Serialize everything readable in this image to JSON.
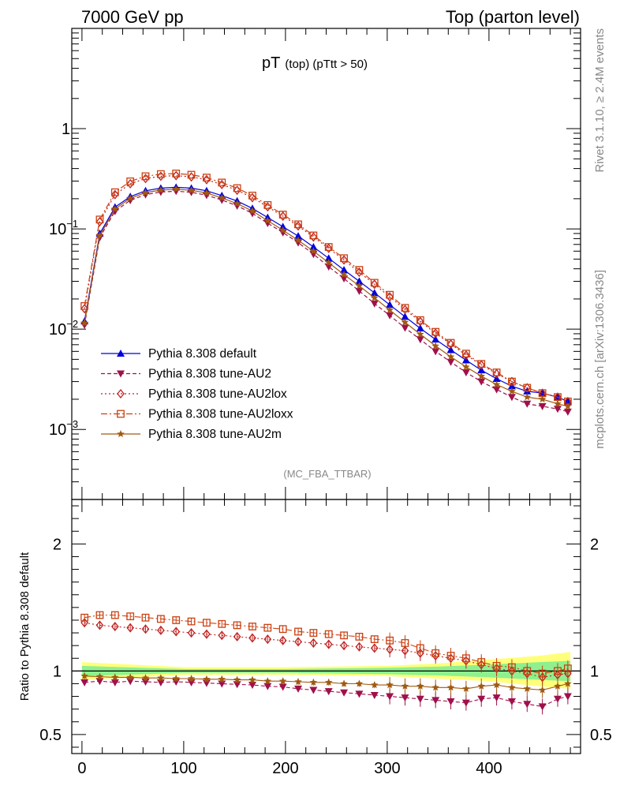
{
  "header": {
    "left": "7000 GeV pp",
    "right": "Top (parton level)"
  },
  "side_labels": {
    "rivet": "Rivet 3.1.10, ≥ 2.4M events",
    "mcplots": "mcplots.cern.ch [arXiv:1306.3436]"
  },
  "chart_data": [
    {
      "type": "line",
      "panel": "main",
      "title_main": "pT",
      "title_sub": "(top)  (pTtt > 50)",
      "watermark": "(MC_FBA_TTBAR)",
      "yscale": "log",
      "xlim": [
        -10,
        490
      ],
      "ylim": [
        0.0002,
        10
      ],
      "x_ticks": [
        0,
        100,
        200,
        300,
        400
      ],
      "y_ticks": [
        {
          "value": 1,
          "label": "1",
          "sup": ""
        },
        {
          "value": 0.1,
          "label": "10",
          "sup": "−1"
        },
        {
          "value": 0.01,
          "label": "10",
          "sup": "−2"
        },
        {
          "value": 0.001,
          "label": "10",
          "sup": "−3"
        }
      ],
      "x": [
        2.5,
        17.5,
        32.5,
        47.5,
        62.5,
        77.5,
        92.5,
        107.5,
        122.5,
        137.5,
        152.5,
        167.5,
        182.5,
        197.5,
        212.5,
        227.5,
        242.5,
        257.5,
        272.5,
        287.5,
        302.5,
        317.5,
        332.5,
        347.5,
        362.5,
        377.5,
        392.5,
        407.5,
        422.5,
        437.5,
        452.5,
        467.5,
        477.5
      ],
      "legend_position": "lower-left",
      "series": [
        {
          "name": "Pythia 8.308 default",
          "color": "#0000dd",
          "marker": "triangle-up",
          "dash": "",
          "values": [
            0.012,
            0.09,
            0.165,
            0.21,
            0.24,
            0.255,
            0.26,
            0.255,
            0.24,
            0.215,
            0.19,
            0.16,
            0.13,
            0.105,
            0.085,
            0.066,
            0.051,
            0.039,
            0.03,
            0.023,
            0.0175,
            0.0133,
            0.0102,
            0.0079,
            0.0062,
            0.0049,
            0.0039,
            0.0032,
            0.0027,
            0.0024,
            0.0023,
            0.0021,
            0.0019
          ]
        },
        {
          "name": "Pythia 8.308 tune-AU2",
          "color": "#a0104a",
          "marker": "triangle-down",
          "dash": "5,3",
          "values": [
            0.011,
            0.082,
            0.15,
            0.193,
            0.22,
            0.233,
            0.238,
            0.232,
            0.217,
            0.194,
            0.17,
            0.143,
            0.114,
            0.092,
            0.073,
            0.056,
            0.042,
            0.032,
            0.024,
            0.018,
            0.0137,
            0.0103,
            0.0079,
            0.006,
            0.0047,
            0.0037,
            0.003,
            0.0025,
            0.0021,
            0.0018,
            0.0017,
            0.0016,
            0.0015
          ]
        },
        {
          "name": "Pythia 8.308 tune-AU2lox",
          "color": "#c02020",
          "marker": "diamond-open",
          "dash": "2,3",
          "values": [
            0.016,
            0.118,
            0.22,
            0.282,
            0.318,
            0.335,
            0.34,
            0.33,
            0.31,
            0.277,
            0.243,
            0.205,
            0.166,
            0.134,
            0.107,
            0.083,
            0.064,
            0.049,
            0.037,
            0.028,
            0.021,
            0.0157,
            0.0119,
            0.0091,
            0.0071,
            0.0055,
            0.0044,
            0.0036,
            0.003,
            0.0026,
            0.0023,
            0.0021,
            0.0019
          ]
        },
        {
          "name": "Pythia 8.308 tune-AU2loxx",
          "color": "#cc4010",
          "marker": "square-open",
          "dash": "8,3,2,3",
          "values": [
            0.017,
            0.124,
            0.232,
            0.298,
            0.335,
            0.352,
            0.357,
            0.347,
            0.325,
            0.29,
            0.255,
            0.215,
            0.173,
            0.139,
            0.111,
            0.086,
            0.066,
            0.051,
            0.039,
            0.029,
            0.022,
            0.0163,
            0.0123,
            0.0094,
            0.0073,
            0.0057,
            0.0045,
            0.0037,
            0.003,
            0.0026,
            0.0023,
            0.0021,
            0.0019
          ]
        },
        {
          "name": "Pythia 8.308 tune-AU2m",
          "color": "#a05a10",
          "marker": "star",
          "dash": "",
          "values": [
            0.0115,
            0.086,
            0.158,
            0.202,
            0.23,
            0.244,
            0.249,
            0.243,
            0.228,
            0.204,
            0.179,
            0.151,
            0.121,
            0.097,
            0.077,
            0.06,
            0.046,
            0.035,
            0.027,
            0.0205,
            0.0155,
            0.0117,
            0.0089,
            0.0068,
            0.0053,
            0.0042,
            0.0034,
            0.0028,
            0.0024,
            0.0021,
            0.002,
            0.0018,
            0.0017
          ]
        }
      ]
    },
    {
      "type": "line",
      "panel": "ratio",
      "ylabel": "Ratio to Pythia 8.308 default",
      "xlim": [
        -10,
        490
      ],
      "ylim": [
        0.35,
        2.35
      ],
      "x_ticks": [
        0,
        100,
        200,
        300,
        400
      ],
      "y_ticks": [
        0.5,
        1,
        2
      ],
      "reference_line": 1,
      "band_x": [
        0,
        100,
        200,
        300,
        350,
        400,
        450,
        480
      ],
      "band_yellow_lo": [
        0.93,
        0.97,
        0.97,
        0.96,
        0.94,
        0.92,
        0.88,
        0.86
      ],
      "band_yellow_hi": [
        1.07,
        1.03,
        1.03,
        1.04,
        1.06,
        1.09,
        1.12,
        1.15
      ],
      "band_green_lo": [
        0.96,
        0.985,
        0.985,
        0.975,
        0.965,
        0.95,
        0.93,
        0.92
      ],
      "band_green_hi": [
        1.04,
        1.015,
        1.015,
        1.025,
        1.035,
        1.05,
        1.07,
        1.08
      ],
      "x": [
        2.5,
        17.5,
        32.5,
        47.5,
        62.5,
        77.5,
        92.5,
        107.5,
        122.5,
        137.5,
        152.5,
        167.5,
        182.5,
        197.5,
        212.5,
        227.5,
        242.5,
        257.5,
        272.5,
        287.5,
        302.5,
        317.5,
        332.5,
        347.5,
        362.5,
        377.5,
        392.5,
        407.5,
        422.5,
        437.5,
        452.5,
        467.5,
        477.5
      ],
      "series": [
        {
          "name": "Pythia 8.308 tune-AU2",
          "color": "#a0104a",
          "values": [
            0.91,
            0.92,
            0.91,
            0.92,
            0.915,
            0.91,
            0.915,
            0.91,
            0.905,
            0.9,
            0.895,
            0.89,
            0.88,
            0.875,
            0.86,
            0.85,
            0.84,
            0.83,
            0.82,
            0.81,
            0.8,
            0.79,
            0.78,
            0.77,
            0.76,
            0.75,
            0.78,
            0.79,
            0.76,
            0.74,
            0.72,
            0.78,
            0.8
          ]
        },
        {
          "name": "Pythia 8.308 tune-AU2lox",
          "color": "#c02020",
          "values": [
            1.38,
            1.36,
            1.35,
            1.34,
            1.33,
            1.32,
            1.31,
            1.3,
            1.29,
            1.28,
            1.27,
            1.26,
            1.25,
            1.24,
            1.23,
            1.22,
            1.21,
            1.2,
            1.19,
            1.18,
            1.17,
            1.16,
            1.14,
            1.12,
            1.1,
            1.08,
            1.05,
            1.02,
            1.0,
            0.98,
            0.95,
            0.97,
            0.98
          ]
        },
        {
          "name": "Pythia 8.308 tune-AU2loxx",
          "color": "#cc4010",
          "values": [
            1.42,
            1.44,
            1.44,
            1.43,
            1.42,
            1.41,
            1.4,
            1.39,
            1.38,
            1.37,
            1.36,
            1.35,
            1.34,
            1.33,
            1.31,
            1.3,
            1.29,
            1.28,
            1.27,
            1.25,
            1.24,
            1.22,
            1.18,
            1.14,
            1.12,
            1.1,
            1.07,
            1.04,
            1.03,
            1.0,
            0.98,
            1.0,
            1.02
          ]
        },
        {
          "name": "Pythia 8.308 tune-AU2m",
          "color": "#a05a10",
          "values": [
            0.96,
            0.955,
            0.95,
            0.95,
            0.945,
            0.945,
            0.94,
            0.94,
            0.935,
            0.935,
            0.93,
            0.93,
            0.92,
            0.92,
            0.915,
            0.91,
            0.91,
            0.9,
            0.9,
            0.89,
            0.89,
            0.88,
            0.88,
            0.87,
            0.87,
            0.86,
            0.88,
            0.89,
            0.87,
            0.86,
            0.85,
            0.88,
            0.9
          ]
        }
      ]
    }
  ]
}
